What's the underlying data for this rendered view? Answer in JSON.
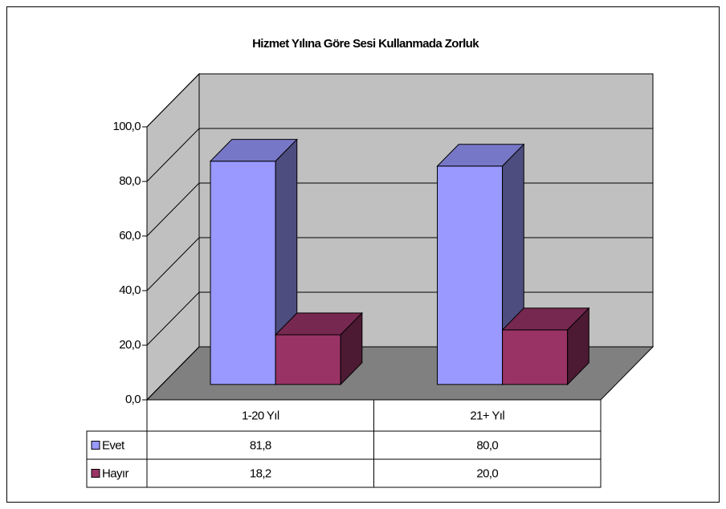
{
  "chart_data": {
    "type": "bar3d",
    "title": "Hizmet Yılına Göre Sesi Kullanmada Zorluk",
    "categories": [
      "1-20 Yıl",
      "21+ Yıl"
    ],
    "series": [
      {
        "name": "Evet",
        "color": "#9999ff",
        "values": [
          81.8,
          80.0
        ],
        "value_labels": [
          "81,8",
          "80,0"
        ]
      },
      {
        "name": "Hayır",
        "color": "#993366",
        "values": [
          18.2,
          20.0
        ],
        "value_labels": [
          "18,2",
          "20,0"
        ]
      }
    ],
    "ylim": [
      0,
      100
    ],
    "yticks": [
      {
        "value": 0,
        "label": "0,0"
      },
      {
        "value": 20,
        "label": "20,0"
      },
      {
        "value": 40,
        "label": "40,0"
      },
      {
        "value": 60,
        "label": "60,0"
      },
      {
        "value": 80,
        "label": "80,0"
      },
      {
        "value": 100,
        "label": "100,0"
      }
    ],
    "grid": true,
    "data_table": true
  }
}
